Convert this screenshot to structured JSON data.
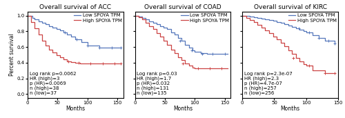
{
  "chart_data": [
    {
      "type": "step",
      "title": "Overall survival of ACC",
      "xlabel": "Months",
      "ylabel": "Percent survival",
      "xlim": [
        0,
        160
      ],
      "ylim": [
        -0.05,
        1.05
      ],
      "xticks": [
        0,
        50,
        100,
        150
      ],
      "yticks": [
        {
          "value": 0.0,
          "label": "0.0"
        },
        {
          "value": 0.2,
          "label": "0.2"
        },
        {
          "value": 0.4,
          "label": "0.4"
        },
        {
          "value": 0.6,
          "label": "0.6"
        },
        {
          "value": 0.8,
          "label": "0.8"
        },
        {
          "value": 1.0,
          "label": "1.0"
        }
      ],
      "legend": "upper right",
      "annotations": [
        "Log rank p=0.0062",
        "HR (high)=3",
        "p (HR)=0.0069",
        "n (high)=38",
        "n (low)=37"
      ],
      "series": [
        {
          "name": "Low SPOYA TPM",
          "color": "#5577BB",
          "x": [
            0,
            8,
            12,
            18,
            24,
            30,
            36,
            42,
            48,
            54,
            60,
            66,
            72,
            80,
            90,
            100,
            120,
            155
          ],
          "values": [
            1.0,
            0.97,
            0.95,
            0.93,
            0.91,
            0.89,
            0.87,
            0.85,
            0.83,
            0.81,
            0.79,
            0.76,
            0.73,
            0.7,
            0.66,
            0.62,
            0.59,
            0.59
          ],
          "censor_x": [
            62,
            82,
            100,
            120,
            140,
            155
          ],
          "censor_values": [
            0.79,
            0.7,
            0.62,
            0.59,
            0.59,
            0.59
          ]
        },
        {
          "name": "High SPOYA TPM",
          "color": "#CC4444",
          "x": [
            0,
            6,
            12,
            18,
            24,
            30,
            36,
            42,
            48,
            54,
            60,
            66,
            72,
            80,
            88,
            155
          ],
          "values": [
            1.0,
            0.92,
            0.84,
            0.76,
            0.68,
            0.62,
            0.57,
            0.53,
            0.5,
            0.47,
            0.44,
            0.42,
            0.41,
            0.4,
            0.39,
            0.39
          ],
          "censor_x": [
            68,
            85,
            105,
            125,
            145,
            155
          ],
          "censor_values": [
            0.42,
            0.4,
            0.39,
            0.39,
            0.39,
            0.39
          ]
        }
      ]
    },
    {
      "type": "step",
      "title": "Overall survival of COAD",
      "xlabel": "Months",
      "xlim": [
        0,
        160
      ],
      "ylim": [
        -0.05,
        1.05
      ],
      "xticks": [
        0,
        50,
        100,
        150
      ],
      "yticks": [
        {
          "value": 0.0,
          "label": "0.0"
        },
        {
          "value": 0.2,
          "label": "0.2"
        },
        {
          "value": 0.4,
          "label": "0.4"
        },
        {
          "value": 0.6,
          "label": "0.6"
        },
        {
          "value": 0.8,
          "label": "0.8"
        },
        {
          "value": 1.0,
          "label": "1.0"
        }
      ],
      "tick_labels": "x",
      "legend": "upper right",
      "annotations": [
        "Log rank p=0.03",
        "HR (high)=1.7",
        "p (HR)=0.032",
        "n (high)=131",
        "n (low)=135"
      ],
      "series": [
        {
          "name": "Low SPOYA TPM",
          "color": "#5577BB",
          "x": [
            0,
            6,
            12,
            18,
            24,
            30,
            36,
            42,
            48,
            54,
            60,
            66,
            72,
            78,
            84,
            90,
            96,
            100,
            110,
            120,
            155
          ],
          "values": [
            1.0,
            0.99,
            0.97,
            0.95,
            0.93,
            0.91,
            0.89,
            0.87,
            0.85,
            0.83,
            0.79,
            0.76,
            0.72,
            0.68,
            0.63,
            0.59,
            0.56,
            0.54,
            0.52,
            0.51,
            0.51
          ],
          "censor_x": [
            75,
            95,
            112,
            130,
            150
          ],
          "censor_values": [
            0.68,
            0.56,
            0.51,
            0.51,
            0.51
          ]
        },
        {
          "name": "High SPOYA TPM",
          "color": "#CC4444",
          "x": [
            0,
            6,
            12,
            18,
            24,
            30,
            36,
            42,
            48,
            54,
            60,
            66,
            72,
            78,
            84,
            90,
            96,
            100,
            110,
            155
          ],
          "values": [
            1.0,
            0.98,
            0.95,
            0.91,
            0.87,
            0.83,
            0.78,
            0.73,
            0.68,
            0.63,
            0.57,
            0.52,
            0.47,
            0.43,
            0.39,
            0.36,
            0.34,
            0.33,
            0.33,
            0.33
          ],
          "censor_x": [
            80,
            105,
            125,
            145
          ],
          "censor_values": [
            0.39,
            0.33,
            0.33,
            0.33
          ]
        }
      ]
    },
    {
      "type": "step",
      "title": "Overall survival of KIRC",
      "xlabel": "Months",
      "xlim": [
        0,
        150
      ],
      "ylim": [
        -0.05,
        1.05
      ],
      "xticks": [
        0,
        50,
        100,
        150
      ],
      "yticks": [
        {
          "value": 0.0,
          "label": "0.0"
        },
        {
          "value": 0.2,
          "label": "0.2"
        },
        {
          "value": 0.4,
          "label": "0.4"
        },
        {
          "value": 0.6,
          "label": "0.6"
        },
        {
          "value": 0.8,
          "label": "0.8"
        },
        {
          "value": 1.0,
          "label": "1.0"
        }
      ],
      "tick_labels": "x",
      "legend": "upper right",
      "annotations": [
        "Log rank p=2.3e-07",
        "HR (high)=2.3",
        "p (HR)=4.7e-07",
        "n (high)=257",
        "n (low)=256"
      ],
      "series": [
        {
          "name": "Low SPOYA TPM",
          "color": "#5577BB",
          "x": [
            0,
            6,
            12,
            18,
            24,
            30,
            36,
            42,
            48,
            54,
            60,
            66,
            72,
            78,
            84,
            90,
            96,
            100,
            110,
            120,
            130,
            145
          ],
          "values": [
            1.0,
            0.995,
            0.988,
            0.98,
            0.972,
            0.963,
            0.954,
            0.943,
            0.932,
            0.92,
            0.906,
            0.891,
            0.875,
            0.858,
            0.841,
            0.822,
            0.801,
            0.785,
            0.755,
            0.72,
            0.68,
            0.645
          ],
          "censor_x": [
            88,
            105,
            120,
            135,
            145
          ],
          "censor_values": [
            0.841,
            0.785,
            0.72,
            0.68,
            0.645
          ]
        },
        {
          "name": "High SPOYA TPM",
          "color": "#CC4444",
          "x": [
            0,
            6,
            12,
            18,
            24,
            30,
            36,
            42,
            48,
            54,
            60,
            66,
            72,
            78,
            84,
            90,
            96,
            100,
            110,
            130,
            145
          ],
          "values": [
            1.0,
            0.975,
            0.948,
            0.918,
            0.886,
            0.852,
            0.816,
            0.778,
            0.738,
            0.697,
            0.653,
            0.608,
            0.561,
            0.51,
            0.46,
            0.415,
            0.38,
            0.36,
            0.3,
            0.265,
            0.265
          ],
          "censor_x": [
            80,
            105,
            130,
            145
          ],
          "censor_values": [
            0.46,
            0.36,
            0.265,
            0.265
          ]
        }
      ]
    }
  ]
}
